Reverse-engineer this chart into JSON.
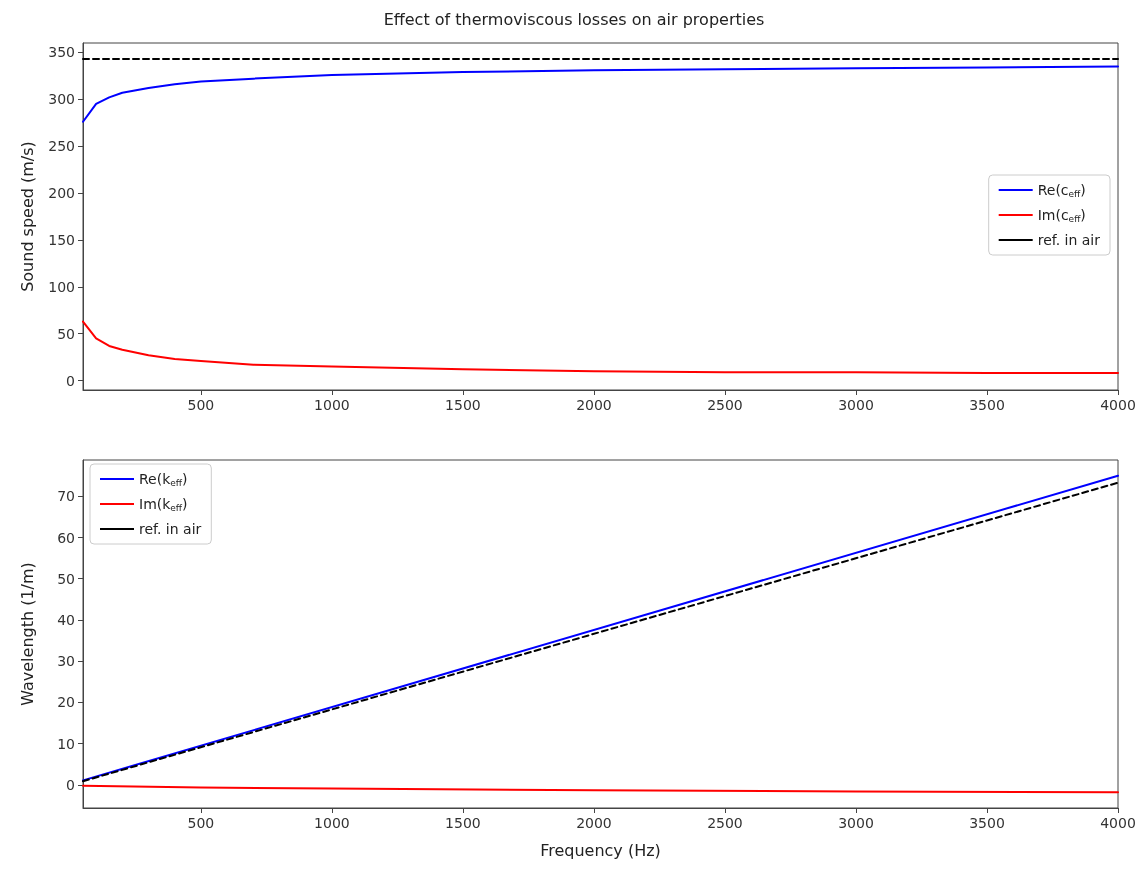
{
  "chart_data": [
    {
      "type": "line",
      "title": "Effect of thermoviscous losses on air properties",
      "ylabel": "Sound speed (m/s)",
      "xlim": [
        50,
        4000
      ],
      "xticks": [
        500,
        1000,
        1500,
        2000,
        2500,
        3000,
        3500,
        4000
      ],
      "ylim": [
        -10,
        360
      ],
      "yticks": [
        0,
        50,
        100,
        150,
        200,
        250,
        300,
        350
      ],
      "grid": false,
      "legend": "right",
      "marker": "none",
      "x": [
        50,
        100,
        150,
        200,
        300,
        400,
        500,
        700,
        1000,
        1500,
        2000,
        2500,
        3000,
        3500,
        4000
      ],
      "series": [
        {
          "name": "Re(c$_{eff}$)",
          "color": "#0000ff",
          "line_style": "solid",
          "values": [
            276,
            295,
            302,
            307,
            312,
            316,
            319,
            322,
            326,
            329,
            331,
            332,
            333,
            334,
            335
          ]
        },
        {
          "name": "Im(c$_{eff}$)",
          "color": "#ff0000",
          "line_style": "solid",
          "values": [
            63,
            45,
            37,
            33,
            27,
            23,
            21,
            17,
            15,
            12,
            10,
            9,
            9,
            8,
            8
          ]
        },
        {
          "name": "ref. in air",
          "color": "#000000",
          "line_style": "dashed",
          "x": [
            50,
            4000
          ],
          "values": [
            343,
            343
          ]
        }
      ]
    },
    {
      "type": "line",
      "xlabel": "Frequency (Hz)",
      "ylabel": "Wavelength (1/m)",
      "xlim": [
        50,
        4000
      ],
      "xticks": [
        500,
        1000,
        1500,
        2000,
        2500,
        3000,
        3500,
        4000
      ],
      "ylim": [
        -5.6,
        78.8
      ],
      "yticks": [
        0,
        10,
        20,
        30,
        40,
        50,
        60,
        70
      ],
      "grid": false,
      "legend": "top left",
      "marker": "none",
      "series": [
        {
          "name": "Re(k$_{eff}$)",
          "color": "#0000ff",
          "line_style": "solid",
          "x": [
            50,
            4000
          ],
          "values": [
            1.1,
            75
          ]
        },
        {
          "name": "Im(k$_{eff}$)",
          "color": "#ff0000",
          "line_style": "solid",
          "x": [
            50,
            500,
            1000,
            2000,
            3000,
            4000
          ],
          "values": [
            -0.2,
            -0.6,
            -0.9,
            -1.3,
            -1.6,
            -1.8
          ]
        },
        {
          "name": "ref. in air",
          "color": "#000000",
          "line_style": "dashed",
          "x": [
            50,
            4000
          ],
          "values": [
            0.9,
            73.3
          ]
        }
      ]
    }
  ]
}
